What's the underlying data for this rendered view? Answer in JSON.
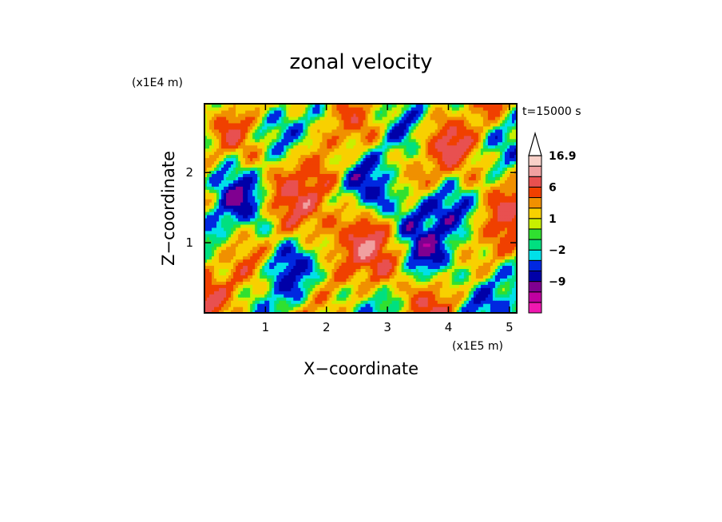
{
  "chart_data": {
    "type": "heatmap",
    "title": "zonal velocity",
    "xlabel": "X−coordinate",
    "ylabel": "Z−coordinate",
    "x_multiplier": "(x1E5 m)",
    "y_multiplier": "(x1E4 m)",
    "time_label": "t=15000 s",
    "xlim": [
      0,
      5.12
    ],
    "ylim": [
      0,
      2.98
    ],
    "x_ticks": [
      {
        "value": 1,
        "label": "1"
      },
      {
        "value": 2,
        "label": "2"
      },
      {
        "value": 3,
        "label": "3"
      },
      {
        "value": 4,
        "label": "4"
      },
      {
        "value": 5,
        "label": "5"
      }
    ],
    "y_ticks": [
      {
        "value": 1,
        "label": "1"
      },
      {
        "value": 2,
        "label": "2"
      }
    ],
    "colorbar": {
      "levels": [
        -15,
        -12,
        -9,
        -6,
        -4,
        -2,
        -1,
        0,
        1,
        2,
        4,
        6,
        9,
        12,
        16.9
      ],
      "colors": [
        "#f018b0",
        "#c000a0",
        "#800090",
        "#0000a8",
        "#0028e0",
        "#00e0e8",
        "#00e080",
        "#30e030",
        "#c8f000",
        "#f8d000",
        "#f09000",
        "#f04000",
        "#e85050",
        "#f0a0a0",
        "#f8d0c8"
      ],
      "extend": "max",
      "labels": [
        {
          "value": 16.9,
          "label": "16.9"
        },
        {
          "value": 6,
          "label": "6"
        },
        {
          "value": 1,
          "label": "1"
        },
        {
          "value": -2,
          "label": "−2"
        },
        {
          "value": -9,
          "label": "−9"
        }
      ]
    },
    "field": {
      "description_of_pattern": "turbulent zonal velocity field with diagonal wave structures",
      "nx": 130,
      "nz": 66
    },
    "grid": false
  }
}
